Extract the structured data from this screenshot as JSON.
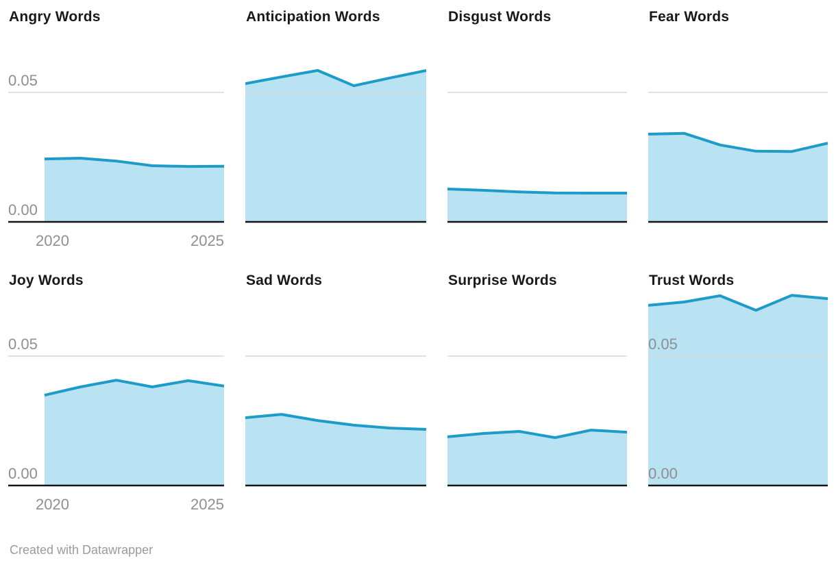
{
  "page": {
    "background": "#ffffff"
  },
  "colors": {
    "line": "#1d9cca",
    "fill": "#b9e2f2",
    "grid": "#d9d9d9",
    "baseline": "#151515",
    "title_text": "#191919",
    "axis_text": "#8f8f8f",
    "footer_text": "#9b9b9b"
  },
  "axis": {
    "y_ticks": [
      "0.05",
      "0.00"
    ],
    "x_ticks": [
      "2020",
      "2025"
    ],
    "gridline_value": 0.05
  },
  "footer": {
    "text": "Created with Datawrapper"
  },
  "chart_data": [
    {
      "type": "area",
      "title": "Angry Words",
      "x": [
        2020,
        2021,
        2022,
        2023,
        2024,
        2025
      ],
      "values": [
        0.0243,
        0.0246,
        0.0235,
        0.0217,
        0.0214,
        0.0215
      ],
      "ylim": [
        0,
        0.075
      ],
      "gridline_value": 0.05,
      "y_labels_shown": true,
      "x_labels_shown": true
    },
    {
      "type": "area",
      "title": "Anticipation Words",
      "x": [
        2020,
        2021,
        2022,
        2023,
        2024,
        2025
      ],
      "values": [
        0.0534,
        0.056,
        0.0585,
        0.0526,
        0.0556,
        0.0585
      ],
      "ylim": [
        0,
        0.075
      ],
      "gridline_value": 0.05,
      "y_labels_shown": false,
      "x_labels_shown": false
    },
    {
      "type": "area",
      "title": "Disgust Words",
      "x": [
        2020,
        2021,
        2022,
        2023,
        2024,
        2025
      ],
      "values": [
        0.0127,
        0.0122,
        0.0116,
        0.0112,
        0.0111,
        0.0111
      ],
      "ylim": [
        0,
        0.075
      ],
      "gridline_value": 0.05,
      "y_labels_shown": false,
      "x_labels_shown": false
    },
    {
      "type": "area",
      "title": "Fear Words",
      "x": [
        2020,
        2021,
        2022,
        2023,
        2024,
        2025
      ],
      "values": [
        0.0339,
        0.0342,
        0.0297,
        0.0273,
        0.0272,
        0.0304
      ],
      "ylim": [
        0,
        0.075
      ],
      "gridline_value": 0.05,
      "y_labels_shown": false,
      "x_labels_shown": false
    },
    {
      "type": "area",
      "title": "Joy Words",
      "x": [
        2020,
        2021,
        2022,
        2023,
        2024,
        2025
      ],
      "values": [
        0.0349,
        0.0381,
        0.0407,
        0.0381,
        0.0405,
        0.0384
      ],
      "ylim": [
        0,
        0.075
      ],
      "gridline_value": 0.05,
      "y_labels_shown": true,
      "x_labels_shown": true
    },
    {
      "type": "area",
      "title": "Sad Words",
      "x": [
        2020,
        2021,
        2022,
        2023,
        2024,
        2025
      ],
      "values": [
        0.0262,
        0.0275,
        0.0251,
        0.0233,
        0.0222,
        0.0217
      ],
      "ylim": [
        0,
        0.075
      ],
      "gridline_value": 0.05,
      "y_labels_shown": false,
      "x_labels_shown": false
    },
    {
      "type": "area",
      "title": "Surprise Words",
      "x": [
        2020,
        2021,
        2022,
        2023,
        2024,
        2025
      ],
      "values": [
        0.0188,
        0.0201,
        0.0209,
        0.0185,
        0.0214,
        0.0206
      ],
      "ylim": [
        0,
        0.075
      ],
      "gridline_value": 0.05,
      "y_labels_shown": false,
      "x_labels_shown": false
    },
    {
      "type": "area",
      "title": "Trust Words",
      "x": [
        2020,
        2021,
        2022,
        2023,
        2024,
        2025
      ],
      "values": [
        0.0696,
        0.0709,
        0.0733,
        0.0677,
        0.0735,
        0.0722
      ],
      "ylim": [
        0,
        0.075
      ],
      "gridline_value": 0.05,
      "y_labels_shown": true,
      "x_labels_shown": false
    }
  ]
}
